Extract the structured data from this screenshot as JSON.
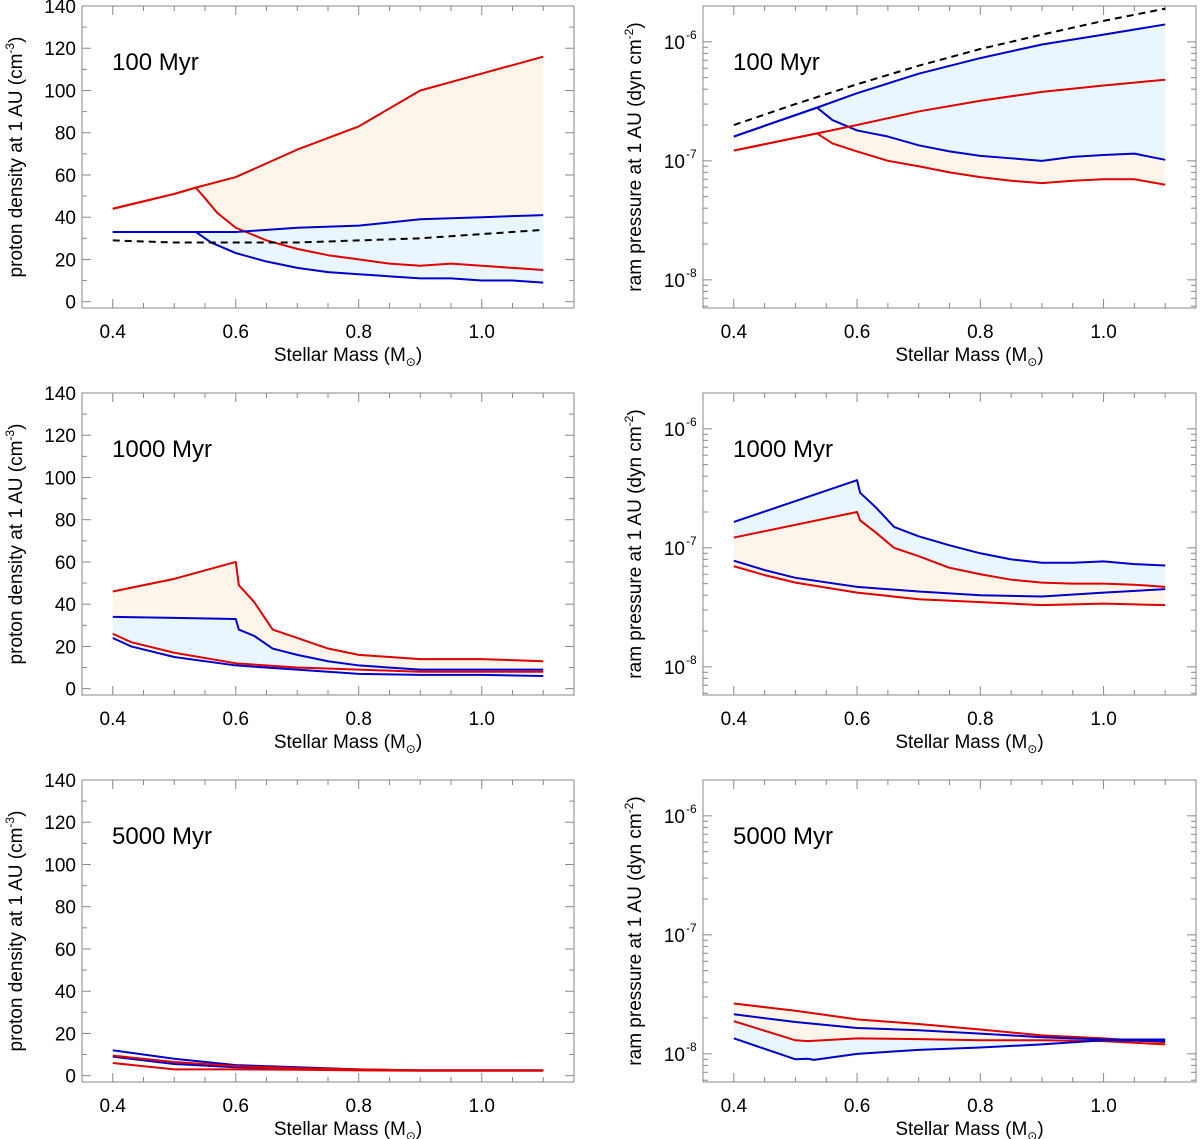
{
  "figure": {
    "xlabel": "Stellar Mass (M",
    "xlabel_sym": "⊙",
    "xlabel_close": ")",
    "density_ylabel": "proton density at 1 AU (cm",
    "density_ylabel_sup": "-3",
    "density_ylabel_close": ")",
    "pressure_ylabel": "ram pressure at 1 AU (dyn cm",
    "pressure_ylabel_sup": "-2",
    "pressure_ylabel_close": ")",
    "colors": {
      "red": "#e00000",
      "blue": "#0000cc",
      "dashed": "#000000",
      "red_fill": "#fef5ea",
      "blue_fill": "#e9f6fd"
    }
  },
  "chart_data": [
    {
      "id": "density-100",
      "type": "line",
      "age_label": "100 Myr",
      "yscale": "linear",
      "xlim": [
        0.35,
        1.15
      ],
      "ylim": [
        -3,
        140
      ],
      "xticks": [
        0.4,
        0.6,
        0.8,
        1.0
      ],
      "xticklabels": [
        "0.4",
        "0.6",
        "0.8",
        "1.0"
      ],
      "yticks": [
        0,
        20,
        40,
        60,
        80,
        100,
        120,
        140
      ],
      "yticklabels": [
        "0",
        "20",
        "40",
        "60",
        "80",
        "100",
        "120",
        "140"
      ],
      "series": [
        {
          "name": "red-upper",
          "color": "red",
          "x": [
            0.4,
            0.5,
            0.535,
            0.6,
            0.7,
            0.8,
            0.9,
            1.0,
            1.1
          ],
          "y": [
            44,
            51,
            54,
            59,
            72,
            83,
            100,
            108,
            116
          ]
        },
        {
          "name": "red-lower",
          "color": "red",
          "x": [
            0.4,
            0.5,
            0.535,
            0.55,
            0.57,
            0.6,
            0.65,
            0.7,
            0.75,
            0.8,
            0.85,
            0.9,
            0.95,
            1.0,
            1.05,
            1.1
          ],
          "y": [
            44,
            51,
            54,
            49,
            42,
            35,
            29,
            25,
            22,
            20,
            18,
            17,
            18,
            17,
            16,
            15
          ]
        },
        {
          "name": "blue-upper",
          "color": "blue",
          "x": [
            0.4,
            0.5,
            0.6,
            0.7,
            0.8,
            0.9,
            1.0,
            1.1
          ],
          "y": [
            33,
            33,
            33,
            35,
            36,
            39,
            40,
            41
          ]
        },
        {
          "name": "blue-lower",
          "color": "blue",
          "x": [
            0.4,
            0.5,
            0.535,
            0.56,
            0.6,
            0.65,
            0.7,
            0.75,
            0.8,
            0.85,
            0.9,
            0.95,
            1.0,
            1.05,
            1.1
          ],
          "y": [
            33,
            33,
            33,
            28,
            23,
            19,
            16,
            14,
            13,
            12,
            11,
            11,
            10,
            10,
            9
          ]
        },
        {
          "name": "reference",
          "color": "dashed",
          "dashed": true,
          "x": [
            0.4,
            0.5,
            0.6,
            0.7,
            0.8,
            0.9,
            1.0,
            1.1
          ],
          "y": [
            29,
            28,
            28,
            28,
            29,
            30,
            32,
            34
          ]
        }
      ],
      "bands": [
        {
          "color": "red_fill",
          "upper": "red-upper",
          "lower": "red-lower"
        },
        {
          "color": "blue_fill",
          "upper": "blue-upper",
          "lower": "blue-lower"
        }
      ]
    },
    {
      "id": "pressure-100",
      "type": "line",
      "age_label": "100 Myr",
      "yscale": "log",
      "xlim": [
        0.35,
        1.15
      ],
      "ylim": [
        5.8e-09,
        2e-06
      ],
      "xticks": [
        0.4,
        0.6,
        0.8,
        1.0
      ],
      "xticklabels": [
        "0.4",
        "0.6",
        "0.8",
        "1.0"
      ],
      "yticks": [
        1e-08,
        1e-07,
        1e-06
      ],
      "yticklabels": [
        "-8",
        "-7",
        "-6"
      ],
      "series": [
        {
          "name": "blue-upper",
          "color": "blue",
          "x": [
            0.4,
            0.535,
            0.6,
            0.7,
            0.8,
            0.9,
            1.0,
            1.1
          ],
          "y": [
            1.6e-07,
            2.8e-07,
            3.7e-07,
            5.4e-07,
            7.3e-07,
            9.5e-07,
            1.15e-06,
            1.4e-06
          ]
        },
        {
          "name": "blue-lower",
          "color": "blue",
          "x": [
            0.4,
            0.535,
            0.56,
            0.6,
            0.65,
            0.7,
            0.75,
            0.8,
            0.85,
            0.9,
            0.95,
            1.0,
            1.05,
            1.1
          ],
          "y": [
            1.6e-07,
            2.8e-07,
            2.2e-07,
            1.8e-07,
            1.6e-07,
            1.35e-07,
            1.2e-07,
            1.1e-07,
            1.05e-07,
            1e-07,
            1.08e-07,
            1.12e-07,
            1.15e-07,
            1.02e-07
          ]
        },
        {
          "name": "red-upper",
          "color": "red",
          "x": [
            0.4,
            0.535,
            0.6,
            0.7,
            0.8,
            0.9,
            1.0,
            1.1
          ],
          "y": [
            1.22e-07,
            1.7e-07,
            2e-07,
            2.6e-07,
            3.2e-07,
            3.8e-07,
            4.3e-07,
            4.8e-07
          ]
        },
        {
          "name": "red-lower",
          "color": "red",
          "x": [
            0.4,
            0.535,
            0.56,
            0.6,
            0.65,
            0.7,
            0.75,
            0.8,
            0.85,
            0.9,
            0.95,
            1.0,
            1.05,
            1.1
          ],
          "y": [
            1.22e-07,
            1.7e-07,
            1.4e-07,
            1.2e-07,
            1e-07,
            9e-08,
            8e-08,
            7.3e-08,
            6.8e-08,
            6.5e-08,
            6.8e-08,
            7e-08,
            7e-08,
            6.3e-08
          ]
        },
        {
          "name": "reference",
          "color": "dashed",
          "dashed": true,
          "x": [
            0.4,
            0.5,
            0.6,
            0.7,
            0.8,
            0.9,
            1.0,
            1.1
          ],
          "y": [
            2e-07,
            3e-07,
            4.4e-07,
            6.3e-07,
            8.7e-07,
            1.15e-06,
            1.5e-06,
            1.9e-06
          ]
        }
      ],
      "bands": [
        {
          "color": "red_fill",
          "upper": "red-upper",
          "lower": "red-lower"
        },
        {
          "color": "blue_fill",
          "upper": "blue-upper",
          "lower": "blue-lower"
        }
      ]
    },
    {
      "id": "density-1000",
      "type": "line",
      "age_label": "1000 Myr",
      "yscale": "linear",
      "xlim": [
        0.35,
        1.15
      ],
      "ylim": [
        -3,
        140
      ],
      "xticks": [
        0.4,
        0.6,
        0.8,
        1.0
      ],
      "xticklabels": [
        "0.4",
        "0.6",
        "0.8",
        "1.0"
      ],
      "yticks": [
        0,
        20,
        40,
        60,
        80,
        100,
        120,
        140
      ],
      "yticklabels": [
        "0",
        "20",
        "40",
        "60",
        "80",
        "100",
        "120",
        "140"
      ],
      "series": [
        {
          "name": "red-upper",
          "color": "red",
          "x": [
            0.4,
            0.5,
            0.6,
            0.605,
            0.63,
            0.66,
            0.7,
            0.75,
            0.8,
            0.9,
            1.0,
            1.1
          ],
          "y": [
            46,
            52,
            60,
            49,
            41,
            28,
            24,
            19,
            16,
            14,
            14,
            13
          ]
        },
        {
          "name": "blue-upper",
          "color": "blue",
          "x": [
            0.4,
            0.5,
            0.6,
            0.605,
            0.63,
            0.66,
            0.7,
            0.75,
            0.8,
            0.9,
            1.0,
            1.1
          ],
          "y": [
            34,
            33.5,
            33,
            28,
            25,
            19,
            16,
            13,
            11,
            9,
            9,
            9
          ]
        },
        {
          "name": "red-lower",
          "color": "red",
          "x": [
            0.4,
            0.43,
            0.5,
            0.6,
            0.7,
            0.8,
            0.9,
            1.0,
            1.1
          ],
          "y": [
            26,
            22,
            17,
            12,
            10,
            9,
            8,
            8,
            8
          ]
        },
        {
          "name": "blue-lower",
          "color": "blue",
          "x": [
            0.4,
            0.43,
            0.5,
            0.6,
            0.7,
            0.8,
            0.9,
            1.0,
            1.1
          ],
          "y": [
            24,
            20,
            15,
            11,
            9,
            7,
            6.5,
            6.5,
            6
          ]
        }
      ],
      "bands": [
        {
          "color": "red_fill",
          "upper": "red-upper",
          "lower": "blue-upper"
        },
        {
          "color": "blue_fill",
          "upper": "blue-upper",
          "lower": "red-lower"
        }
      ]
    },
    {
      "id": "pressure-1000",
      "type": "line",
      "age_label": "1000 Myr",
      "yscale": "log",
      "xlim": [
        0.35,
        1.15
      ],
      "ylim": [
        5.8e-09,
        2e-06
      ],
      "xticks": [
        0.4,
        0.6,
        0.8,
        1.0
      ],
      "xticklabels": [
        "0.4",
        "0.6",
        "0.8",
        "1.0"
      ],
      "yticks": [
        1e-08,
        1e-07,
        1e-06
      ],
      "yticklabels": [
        "-8",
        "-7",
        "-6"
      ],
      "series": [
        {
          "name": "blue-upper",
          "color": "blue",
          "x": [
            0.4,
            0.6,
            0.605,
            0.63,
            0.66,
            0.7,
            0.75,
            0.8,
            0.85,
            0.9,
            0.95,
            1.0,
            1.05,
            1.1
          ],
          "y": [
            1.65e-07,
            3.7e-07,
            2.9e-07,
            2.2e-07,
            1.5e-07,
            1.25e-07,
            1.05e-07,
            9e-08,
            8e-08,
            7.5e-08,
            7.5e-08,
            7.7e-08,
            7.3e-08,
            7.1e-08
          ]
        },
        {
          "name": "red-upper",
          "color": "red",
          "x": [
            0.4,
            0.6,
            0.605,
            0.63,
            0.66,
            0.7,
            0.75,
            0.8,
            0.85,
            0.9,
            0.95,
            1.0,
            1.05,
            1.1
          ],
          "y": [
            1.22e-07,
            2e-07,
            1.7e-07,
            1.35e-07,
            1e-07,
            8.5e-08,
            6.8e-08,
            6e-08,
            5.4e-08,
            5.1e-08,
            5e-08,
            5e-08,
            4.9e-08,
            4.7e-08
          ]
        },
        {
          "name": "blue-lower",
          "color": "blue",
          "x": [
            0.4,
            0.45,
            0.5,
            0.6,
            0.7,
            0.8,
            0.9,
            1.0,
            1.1
          ],
          "y": [
            7.8e-08,
            6.5e-08,
            5.6e-08,
            4.7e-08,
            4.3e-08,
            4e-08,
            3.9e-08,
            4.2e-08,
            4.5e-08
          ]
        },
        {
          "name": "red-lower",
          "color": "red",
          "x": [
            0.4,
            0.45,
            0.5,
            0.6,
            0.7,
            0.8,
            0.9,
            1.0,
            1.1
          ],
          "y": [
            7e-08,
            5.9e-08,
            5.1e-08,
            4.2e-08,
            3.7e-08,
            3.5e-08,
            3.3e-08,
            3.4e-08,
            3.3e-08
          ]
        }
      ],
      "bands": [
        {
          "color": "blue_fill",
          "upper": "blue-upper",
          "lower": "red-upper"
        },
        {
          "color": "red_fill",
          "upper": "red-upper",
          "lower": "red-lower"
        }
      ]
    },
    {
      "id": "density-5000",
      "type": "line",
      "age_label": "5000 Myr",
      "yscale": "linear",
      "xlim": [
        0.35,
        1.15
      ],
      "ylim": [
        -3,
        140
      ],
      "xticks": [
        0.4,
        0.6,
        0.8,
        1.0
      ],
      "xticklabels": [
        "0.4",
        "0.6",
        "0.8",
        "1.0"
      ],
      "yticks": [
        0,
        20,
        40,
        60,
        80,
        100,
        120,
        140
      ],
      "yticklabels": [
        "0",
        "20",
        "40",
        "60",
        "80",
        "100",
        "120",
        "140"
      ],
      "series": [
        {
          "name": "blue-upper",
          "color": "blue",
          "x": [
            0.4,
            0.5,
            0.6,
            0.7,
            0.8,
            0.9,
            1.0,
            1.1
          ],
          "y": [
            12,
            8,
            5,
            4,
            3,
            2.5,
            2.5,
            2.5
          ]
        },
        {
          "name": "blue-lower",
          "color": "blue",
          "x": [
            0.4,
            0.5,
            0.6,
            0.7,
            0.8,
            0.9,
            1.0,
            1.1
          ],
          "y": [
            9,
            5.5,
            4,
            3.5,
            2.8,
            2.5,
            2.5,
            2.5
          ]
        },
        {
          "name": "red-upper",
          "color": "red",
          "x": [
            0.4,
            0.5,
            0.6,
            0.7,
            0.8,
            0.9,
            1.0,
            1.1
          ],
          "y": [
            9.5,
            6.5,
            4.5,
            3.5,
            3,
            2.5,
            2.5,
            2.5
          ]
        },
        {
          "name": "red-lower",
          "color": "red",
          "x": [
            0.4,
            0.5,
            0.6,
            0.7,
            0.8,
            0.9,
            1.0,
            1.1
          ],
          "y": [
            6,
            3,
            3,
            2.8,
            2.5,
            2.3,
            2.3,
            2.3
          ]
        }
      ],
      "bands": []
    },
    {
      "id": "pressure-5000",
      "type": "line",
      "age_label": "5000 Myr",
      "yscale": "log",
      "xlim": [
        0.35,
        1.15
      ],
      "ylim": [
        5.8e-09,
        2e-06
      ],
      "xticks": [
        0.4,
        0.6,
        0.8,
        1.0
      ],
      "xticklabels": [
        "0.4",
        "0.6",
        "0.8",
        "1.0"
      ],
      "yticks": [
        1e-08,
        1e-07,
        1e-06
      ],
      "yticklabels": [
        "-8",
        "-7",
        "-6"
      ],
      "series": [
        {
          "name": "red-upper",
          "color": "red",
          "x": [
            0.4,
            0.5,
            0.6,
            0.7,
            0.8,
            0.9,
            1.0,
            1.1
          ],
          "y": [
            2.65e-08,
            2.3e-08,
            1.95e-08,
            1.78e-08,
            1.6e-08,
            1.43e-08,
            1.35e-08,
            1.25e-08
          ]
        },
        {
          "name": "blue-upper",
          "color": "blue",
          "x": [
            0.4,
            0.5,
            0.6,
            0.7,
            0.8,
            0.9,
            1.0,
            1.1
          ],
          "y": [
            2.15e-08,
            1.85e-08,
            1.65e-08,
            1.58e-08,
            1.48e-08,
            1.38e-08,
            1.32e-08,
            1.32e-08
          ]
        },
        {
          "name": "red-lower",
          "color": "red",
          "x": [
            0.4,
            0.5,
            0.52,
            0.6,
            0.7,
            0.8,
            0.9,
            1.0,
            1.1
          ],
          "y": [
            1.88e-08,
            1.3e-08,
            1.28e-08,
            1.35e-08,
            1.33e-08,
            1.3e-08,
            1.3e-08,
            1.28e-08,
            1.2e-08
          ]
        },
        {
          "name": "blue-lower",
          "color": "blue",
          "x": [
            0.4,
            0.5,
            0.52,
            0.53,
            0.6,
            0.7,
            0.8,
            0.9,
            1.0,
            1.1
          ],
          "y": [
            1.35e-08,
            9e-09,
            9.1e-09,
            8.9e-09,
            1e-08,
            1.08e-08,
            1.13e-08,
            1.2e-08,
            1.3e-08,
            1.28e-08
          ]
        }
      ],
      "bands": [
        {
          "color": "red_fill",
          "upper": "red-upper",
          "lower": "red-lower"
        },
        {
          "color": "blue_fill",
          "upper": "red-lower",
          "lower": "blue-lower"
        }
      ]
    }
  ]
}
